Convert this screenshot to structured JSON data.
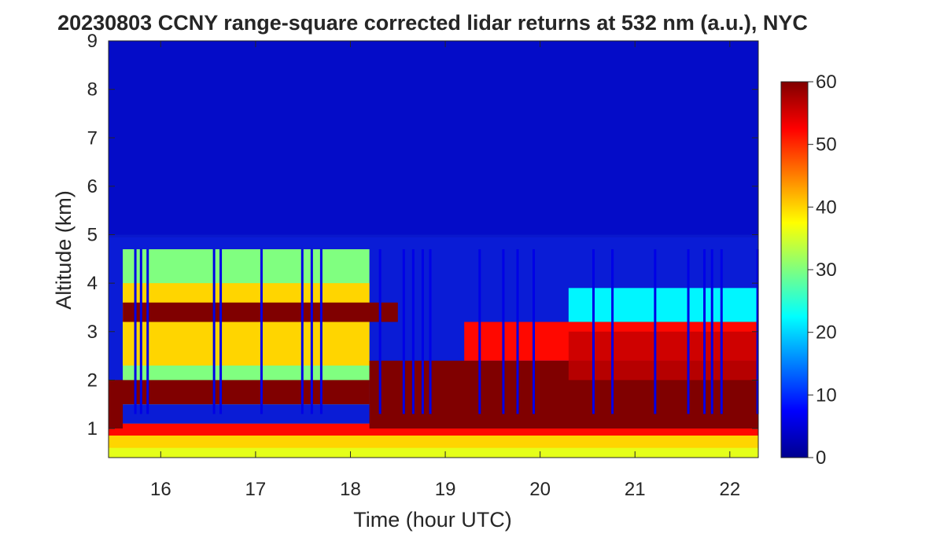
{
  "chart_data": {
    "type": "heatmap",
    "title": "20230803 CCNY range-square corrected lidar returns at 532 nm (a.u.), NYC",
    "xlabel": "Time (hour UTC)",
    "ylabel": "Altitude (km)",
    "xlim": [
      15.45,
      22.3
    ],
    "ylim": [
      0.4,
      9
    ],
    "xticks": [
      "16",
      "17",
      "18",
      "19",
      "20",
      "21",
      "22"
    ],
    "yticks": [
      "1",
      "2",
      "3",
      "4",
      "5",
      "6",
      "7",
      "8",
      "9"
    ],
    "colorbar": {
      "range": [
        0,
        60
      ],
      "ticks": [
        "0",
        "10",
        "20",
        "30",
        "40",
        "50",
        "60"
      ],
      "colormap": "jet"
    },
    "grid": false,
    "layers": [
      {
        "feature": "near-surface layer",
        "altitude_km": [
          0.4,
          1.1
        ],
        "value_approx": 40
      },
      {
        "feature": "boundary layer / convective layer top",
        "time_hour": [
          18.2,
          22.3
        ],
        "altitude_km": [
          1.0,
          3.2
        ],
        "value_approx": 60
      },
      {
        "feature": "elevated aerosol layer",
        "time_hour": [
          15.6,
          18.5
        ],
        "altitude_km": [
          3.2,
          3.6
        ],
        "value_approx": 60
      },
      {
        "feature": "elevated aerosol layer",
        "time_hour": [
          15.5,
          18.2
        ],
        "altitude_km": [
          1.5,
          2.0
        ],
        "value_approx": 60
      },
      {
        "feature": "residual layer top",
        "time_hour": [
          15.6,
          22.3
        ],
        "altitude_km": [
          4.0,
          4.7
        ],
        "value_approx": 20
      },
      {
        "feature": "free troposphere background",
        "altitude_km": [
          5.0,
          9.0
        ],
        "value_approx": 4
      }
    ]
  }
}
